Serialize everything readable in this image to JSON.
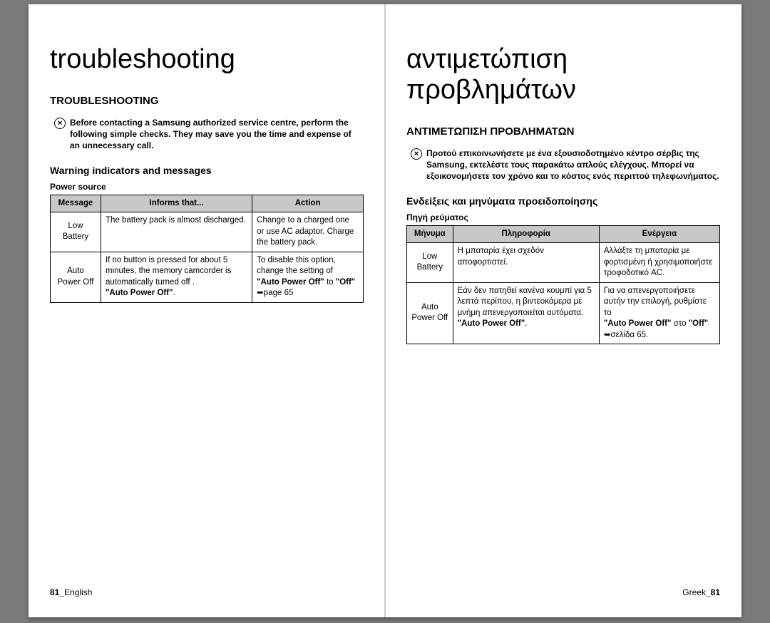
{
  "left": {
    "big_title": "troubleshooting",
    "section_heading": "TROUBLESHOOTING",
    "intro": "Before contacting a Samsung authorized service centre, perform the following simple checks. They may save you the time and expense of an unnecessary call.",
    "sub_heading": "Warning indicators and messages",
    "table_label": "Power source",
    "table": {
      "headers": [
        "Message",
        "Informs that...",
        "Action"
      ],
      "rows": [
        {
          "message": "Low Battery",
          "informs": "The battery pack is almost discharged.",
          "action": "Change to a charged one or use AC adaptor.\nCharge the battery pack."
        },
        {
          "message": "Auto Power Off",
          "informs": "If no button is pressed for about 5 minutes, the memory camcorder is automatically turned off .\n\"Auto Power Off\".",
          "action": "To disable this option, change the setting of\n\"Auto Power Off\" to \"Off\"\n➥page 65"
        }
      ]
    },
    "page_num_prefix": "81_",
    "page_num_lang": "English"
  },
  "right": {
    "big_title": "αντιμετώπιση προβλημάτων",
    "section_heading": "ΑΝΤΙΜΕΤΩΠΙΣΗ ΠΡΟΒΛΗΜΑΤΩΝ",
    "intro": "Προτού επικοινωνήσετε με ένα εξουσιοδοτημένο κέντρο σέρβις της Samsung, εκτελέστε τους παρακάτω απλούς ελέγχους. Μπορεί να εξοικονομήσετε τον χρόνο και το κόστος ενός περιττού τηλεφωνήματος.",
    "sub_heading": "Ενδείξεις και μηνύματα προειδοποίησης",
    "table_label": "Πηγή ρεύματος",
    "table": {
      "headers": [
        "Μήνυμα",
        "Πληροφορία",
        "Ενέργεια"
      ],
      "rows": [
        {
          "message": "Low Battery",
          "informs": "Η μπαταρία έχει σχεδόν αποφορτιστεί.",
          "action": "Αλλάξτε τη μπαταρία με φορτισμένη ή χρησιμοποιήστε τροφοδοτικό AC."
        },
        {
          "message": "Auto Power Off",
          "informs": "Εάν δεν πατηθεί κανένα κουμπί για 5 λεπτά περίπου, η βιντεοκάμερα με μνήμη απενεργοποιείται αυτόματα.\n\"Auto Power Off\".",
          "action": "Για να απενεργοποιήσετε αυτήν την επιλογή, ρυθμίστε το\n\"Auto Power Off\" στο \"Off\"\n➥σελίδα 65."
        }
      ]
    },
    "page_num_lang": "Greek",
    "page_num_suffix": "_81"
  },
  "colors": {
    "page_bg": "#7a7a7a",
    "sheet_bg": "#ffffff",
    "table_header_bg": "#c8c8c8",
    "border": "#000000"
  }
}
